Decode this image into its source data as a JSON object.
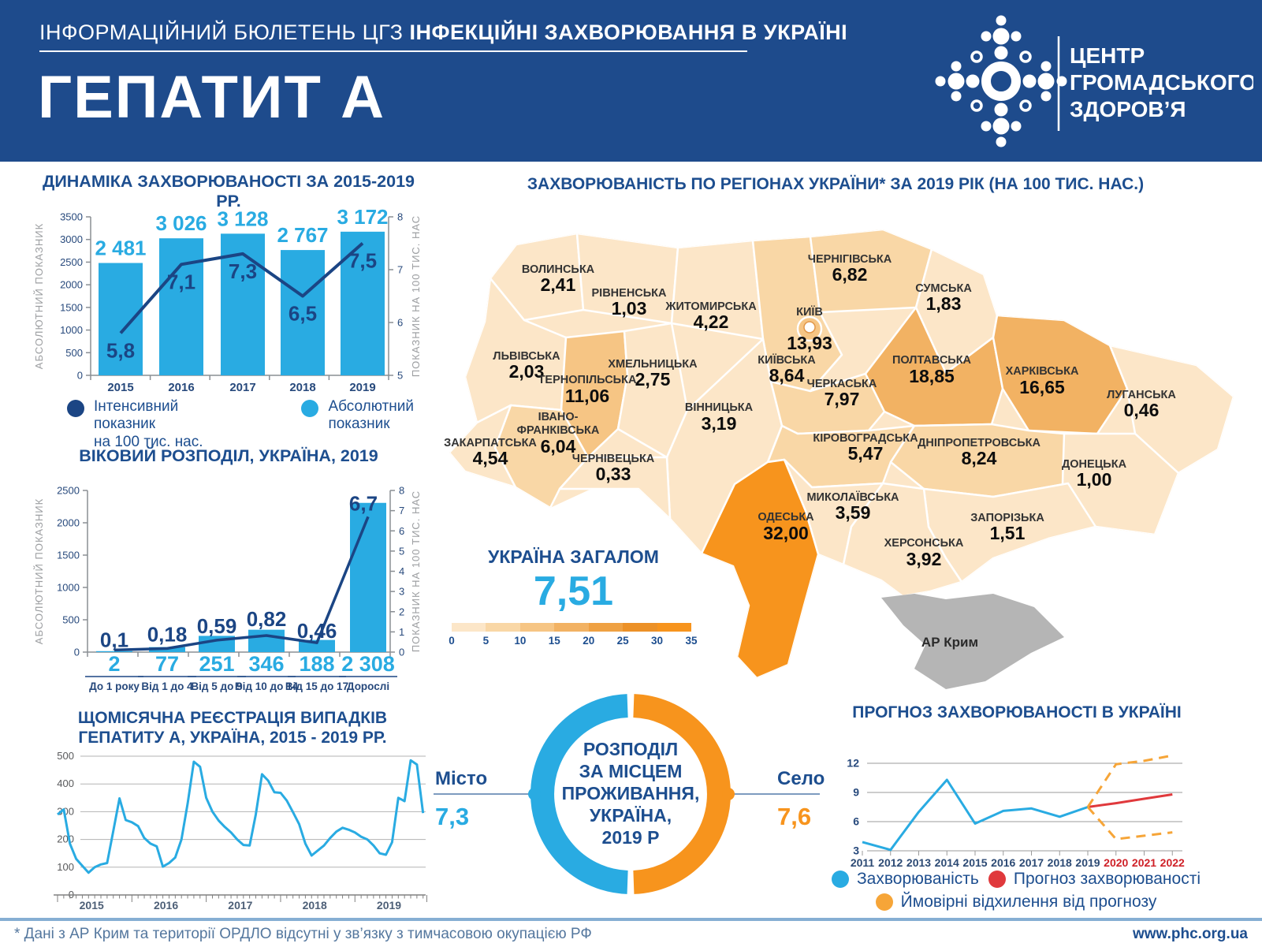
{
  "header": {
    "bulletin_prefix": "ІНФОРМАЦІЙНИЙ БЮЛЕТЕНЬ ЦГЗ",
    "bulletin_bold": "ІНФЕКЦІЙНІ ЗАХВОРЮВАННЯ В УКРАЇНІ",
    "title": "ГЕПАТИТ А",
    "org": [
      "ЦЕНТР",
      "ГРОМАДСЬКОГО",
      "ЗДОРОВ’Я"
    ]
  },
  "colors": {
    "navy": "#1d4e8f",
    "header_bg": "#1e4b8c",
    "light_blue": "#29abe2",
    "dark_line": "#1b4584",
    "orange": "#f7941d",
    "red": "#e0393c",
    "band_orange": "#f6a538",
    "grid": "#b3b3b3",
    "crimea": "#b5b5b5",
    "map_palette": [
      "#fce6c8",
      "#f9d7a6",
      "#f6c584",
      "#f2b263",
      "#efa143",
      "#ec9127",
      "#f7941d"
    ]
  },
  "map": {
    "title": "ЗАХВОРЮВАНІСТЬ ПО РЕГІОНАХ УКРАЇНИ* ЗА 2019 РІК (НА 100 ТИС. НАС.)",
    "crimea_label": "АР Крим",
    "total": {
      "label": "УКРАЇНА ЗАГАЛОМ",
      "value": "7,51"
    },
    "scale_ticks": [
      "0",
      "5",
      "10",
      "15",
      "20",
      "25",
      "30",
      "35"
    ],
    "regions": [
      {
        "name": "ВОЛИНСЬКА",
        "value": "2,41",
        "num": 2.41,
        "bin": 0
      },
      {
        "name": "РІВНЕНСЬКА",
        "value": "1,03",
        "num": 1.03,
        "bin": 0
      },
      {
        "name": "ЖИТОМИРСЬКА",
        "value": "4,22",
        "num": 4.22,
        "bin": 0
      },
      {
        "name": "КИЇВ",
        "value": "13,93",
        "num": 13.93,
        "bin": 2
      },
      {
        "name": "ЧЕРНІГІВСЬКА",
        "value": "6,82",
        "num": 6.82,
        "bin": 1
      },
      {
        "name": "СУМСЬКА",
        "value": "1,83",
        "num": 1.83,
        "bin": 0
      },
      {
        "name": "ЛЬВІВСЬКА",
        "value": "2,03",
        "num": 2.03,
        "bin": 0
      },
      {
        "name": "ТЕРНОПІЛЬСЬКА",
        "value": "11,06",
        "num": 11.06,
        "bin": 2
      },
      {
        "name": "ХМЕЛЬНИЦЬКА",
        "value": "2,75",
        "num": 2.75,
        "bin": 0
      },
      {
        "name": "КИЇВСЬКА",
        "value": "8,64",
        "num": 8.64,
        "bin": 1
      },
      {
        "name": "ЧЕРКАСЬКА",
        "value": "7,97",
        "num": 7.97,
        "bin": 1
      },
      {
        "name": "ПОЛТАВСЬКА",
        "value": "18,85",
        "num": 18.85,
        "bin": 3
      },
      {
        "name": "ХАРКІВСЬКА",
        "value": "16,65",
        "num": 16.65,
        "bin": 3
      },
      {
        "name": "ЛУГАНСЬКА",
        "value": "0,46",
        "num": 0.46,
        "bin": 0
      },
      {
        "name": "ІВАНО-ФРАНКІВСЬКА",
        "lines": [
          "ІВАНО-",
          "ФРАНКІВСЬКА"
        ],
        "value": "6,04",
        "num": 6.04,
        "bin": 1
      },
      {
        "name": "ЗАКАРПАТСЬКА",
        "value": "4,54",
        "num": 4.54,
        "bin": 0
      },
      {
        "name": "ЧЕРНІВЕЦЬКА",
        "value": "0,33",
        "num": 0.33,
        "bin": 0
      },
      {
        "name": "ВІННИЦЬКА",
        "value": "3,19",
        "num": 3.19,
        "bin": 0
      },
      {
        "name": "КІРОВОГРАДСЬКА",
        "value": "5,47",
        "num": 5.47,
        "bin": 1
      },
      {
        "name": "ДНІПРОПЕТРОВСЬКА",
        "value": "8,24",
        "num": 8.24,
        "bin": 1
      },
      {
        "name": "ДОНЕЦЬКА",
        "value": "1,00",
        "num": 1.0,
        "bin": 0
      },
      {
        "name": "МИКОЛАЇВСЬКА",
        "value": "3,59",
        "num": 3.59,
        "bin": 0
      },
      {
        "name": "ОДЕСЬКА",
        "value": "32,00",
        "num": 32.0,
        "bin": 6
      },
      {
        "name": "ЗАПОРІЗЬКА",
        "value": "1,51",
        "num": 1.51,
        "bin": 0
      },
      {
        "name": "ХЕРСОНСЬКА",
        "value": "3,92",
        "num": 3.92,
        "bin": 0
      }
    ]
  },
  "chart_data": [
    {
      "id": "dynamics",
      "type": "bar+line",
      "title": "ДИНАМІКА ЗАХВОРЮВАНОСТІ ЗА 2015-2019 РР.",
      "categories": [
        "2015",
        "2016",
        "2017",
        "2018",
        "2019"
      ],
      "bars": {
        "values": [
          2481,
          3026,
          3128,
          2767,
          3172
        ],
        "labels": [
          "2 481",
          "3 026",
          "3 128",
          "2 767",
          "3 172"
        ],
        "color": "#29abe2"
      },
      "line": {
        "values": [
          5.8,
          7.1,
          7.3,
          6.5,
          7.5
        ],
        "labels": [
          "5,8",
          "7,1",
          "7,3",
          "6,5",
          "7,5"
        ],
        "color": "#1b4584"
      },
      "y_left": {
        "label": "АБСОЛЮТНИЙ ПОКАЗНИК",
        "min": 0,
        "max": 3500,
        "step": 500
      },
      "y_right": {
        "label": "ПОКАЗНИК НА 100 ТИС. НАС",
        "min": 5,
        "max": 8,
        "step": 1
      },
      "legend": [
        {
          "label": "Інтенсивний показник",
          "label2": "на 100 тис. нас.",
          "color": "#1b4584"
        },
        {
          "label": "Абсолютний",
          "label2": "показник",
          "color": "#29abe2"
        }
      ]
    },
    {
      "id": "age",
      "type": "bar+line",
      "title": "ВІКОВИЙ РОЗПОДІЛ, УКРАЇНА, 2019",
      "categories": [
        "До 1 року",
        "Від 1 до 4",
        "Від 5 до 9",
        "Від 10 до 14",
        "Від 15 до 17",
        "Дорослі"
      ],
      "bars": {
        "values": [
          2,
          77,
          251,
          346,
          188,
          2308
        ],
        "labels": [
          "2",
          "77",
          "251",
          "346",
          "188",
          "2 308"
        ],
        "color": "#29abe2"
      },
      "line": {
        "values": [
          0.1,
          0.18,
          0.59,
          0.82,
          0.46,
          6.7
        ],
        "labels": [
          "0,1",
          "0,18",
          "0,59",
          "0,82",
          "0,46",
          "6,7"
        ],
        "color": "#1b4584"
      },
      "y_left": {
        "label": "АБСОЛЮТНИЙ ПОКАЗНИК",
        "min": 0,
        "max": 2500,
        "step": 500
      },
      "y_right": {
        "label": "ПОКАЗНИК НА 100 ТИС. НАС",
        "min": 0,
        "max": 8,
        "step": 1
      }
    },
    {
      "id": "monthly",
      "type": "line",
      "title_lines": [
        "ЩОМІСЯЧНА РЕЄСТРАЦІЯ ВИПАДКІВ",
        "ГЕПАТИТУ А, УКРАЇНА, 2015 - 2019 РР."
      ],
      "years": [
        "2015",
        "2016",
        "2017",
        "2018",
        "2019"
      ],
      "ylim": [
        0,
        500
      ],
      "y_step": 100,
      "color": "#29abe2",
      "monthly_values": [
        290,
        308,
        185,
        130,
        105,
        80,
        100,
        110,
        115,
        230,
        348,
        270,
        262,
        248,
        205,
        185,
        175,
        102,
        115,
        135,
        200,
        330,
        480,
        462,
        350,
        300,
        268,
        245,
        225,
        200,
        180,
        178,
        290,
        435,
        412,
        370,
        368,
        340,
        298,
        255,
        185,
        142,
        160,
        178,
        205,
        228,
        242,
        235,
        225,
        210,
        200,
        178,
        150,
        145,
        190,
        350,
        338,
        485,
        470,
        295
      ]
    },
    {
      "id": "residence",
      "type": "pie",
      "title_lines": [
        "РОЗПОДІЛ",
        "ЗА МІСЦЕМ",
        "ПРОЖИВАННЯ,",
        "УКРАЇНА,",
        "2019 Р"
      ],
      "slices": [
        {
          "label": "Місто",
          "value": "7,3",
          "color": "#29abe2"
        },
        {
          "label": "Село",
          "value": "7,6",
          "color": "#f7941d"
        }
      ]
    },
    {
      "id": "forecast",
      "type": "line",
      "title": "ПРОГНОЗ ЗАХВОРЮВАНОСТІ В УКРАЇНІ",
      "x": [
        2011,
        2012,
        2013,
        2014,
        2015,
        2016,
        2017,
        2018,
        2019,
        2020,
        2021,
        2022
      ],
      "x_red_from": 2020,
      "ylim": [
        3,
        12
      ],
      "y_ticks": [
        3,
        6,
        9,
        12
      ],
      "series": [
        {
          "name": "Захворюваність",
          "color": "#29abe2",
          "dashed": false,
          "x": [
            2011,
            2012,
            2013,
            2014,
            2015,
            2016,
            2017,
            2018,
            2019
          ],
          "values": [
            3.9,
            3.1,
            7.0,
            10.3,
            5.8,
            7.1,
            7.35,
            6.5,
            7.5
          ]
        },
        {
          "name": "Прогноз захворюваності",
          "color": "#e0393c",
          "dashed": false,
          "x": [
            2019,
            2020,
            2021,
            2022
          ],
          "values": [
            7.5,
            7.9,
            8.35,
            8.8
          ]
        },
        {
          "name": "Ймовірні відхилення від прогнозу",
          "color": "#f6a538",
          "dashed": true,
          "x": [
            2019,
            2020,
            2021,
            2022
          ],
          "values": [
            7.5,
            11.9,
            12.25,
            12.8
          ]
        },
        {
          "name": "Ймовірні відхилення від прогнозу",
          "color": "#f6a538",
          "dashed": true,
          "x": [
            2019,
            2020,
            2021,
            2022
          ],
          "values": [
            7.5,
            4.2,
            4.55,
            4.9
          ]
        }
      ]
    }
  ],
  "footer": {
    "note": "* Дані з АР Крим та території ОРДЛО відсутні у зв’язку з тимчасовою окупацією РФ",
    "site": "www.phc.org.ua"
  }
}
